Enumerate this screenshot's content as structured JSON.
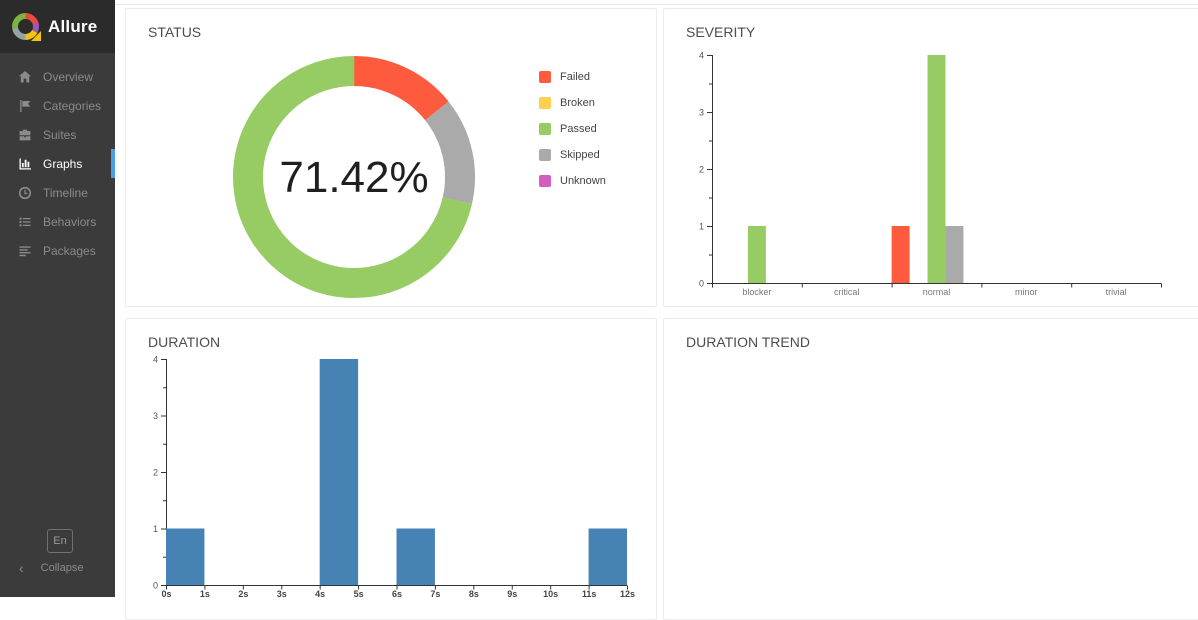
{
  "app": {
    "name": "Allure"
  },
  "sidebar": {
    "items": [
      {
        "label": "Overview",
        "icon": "home",
        "active": false
      },
      {
        "label": "Categories",
        "icon": "flag",
        "active": false
      },
      {
        "label": "Suites",
        "icon": "briefcase",
        "active": false
      },
      {
        "label": "Graphs",
        "icon": "bar-chart",
        "active": true
      },
      {
        "label": "Timeline",
        "icon": "clock",
        "active": false
      },
      {
        "label": "Behaviors",
        "icon": "list",
        "active": false
      },
      {
        "label": "Packages",
        "icon": "align-left",
        "active": false
      }
    ],
    "language_button_label": "En",
    "collapse_label": "Collapse"
  },
  "panels": {
    "status_title": "STATUS",
    "severity_title": "SEVERITY",
    "duration_title": "DURATION",
    "duration_trend_title": "DURATION TREND"
  },
  "colors": {
    "failed": "#fd5a3e",
    "broken": "#ffd050",
    "passed": "#97cc64",
    "skipped": "#aaaaaa",
    "unknown": "#d35ebe",
    "duration_bar": "#4682b4",
    "active_indicator": "#4a9fe3",
    "sidebar_bg": "#3b3b3b",
    "sidebar_header_bg": "#2b2b2b"
  },
  "chart_data": [
    {
      "id": "status",
      "type": "pie",
      "title": "STATUS",
      "center_label": "71.42%",
      "legend": [
        {
          "name": "Failed",
          "color": "#fd5a3e",
          "percent": 14.29
        },
        {
          "name": "Broken",
          "color": "#ffd050",
          "percent": 0
        },
        {
          "name": "Passed",
          "color": "#97cc64",
          "percent": 71.42
        },
        {
          "name": "Skipped",
          "color": "#aaaaaa",
          "percent": 14.29
        },
        {
          "name": "Unknown",
          "color": "#d35ebe",
          "percent": 0
        }
      ],
      "ring_order": [
        "Failed",
        "Skipped",
        "Passed"
      ],
      "ring_direction": "clockwise-from-top",
      "legend_position": "right"
    },
    {
      "id": "severity",
      "type": "bar",
      "title": "SEVERITY",
      "categories": [
        "blocker",
        "critical",
        "normal",
        "minor",
        "trivial"
      ],
      "series": [
        {
          "name": "Failed",
          "color": "#fd5a3e",
          "values": [
            0,
            0,
            1,
            0,
            0
          ]
        },
        {
          "name": "Broken",
          "color": "#ffd050",
          "values": [
            0,
            0,
            0,
            0,
            0
          ]
        },
        {
          "name": "Passed",
          "color": "#97cc64",
          "values": [
            1,
            0,
            4,
            0,
            0
          ]
        },
        {
          "name": "Skipped",
          "color": "#aaaaaa",
          "values": [
            0,
            0,
            1,
            0,
            0
          ]
        },
        {
          "name": "Unknown",
          "color": "#d35ebe",
          "values": [
            0,
            0,
            0,
            0,
            0
          ]
        }
      ],
      "ylim": [
        0,
        4
      ],
      "yticks": [
        0,
        1,
        2,
        3,
        4
      ],
      "grid": false,
      "legend_position": "none"
    },
    {
      "id": "duration",
      "type": "bar",
      "title": "DURATION",
      "bin_labels": [
        "0s",
        "1s",
        "2s",
        "3s",
        "4s",
        "5s",
        "6s",
        "7s",
        "8s",
        "9s",
        "10s",
        "11s",
        "12s"
      ],
      "values": [
        1,
        0,
        0,
        0,
        4,
        0,
        1,
        0,
        0,
        0,
        0,
        1
      ],
      "color": "#4682b4",
      "ylim": [
        0,
        4
      ],
      "yticks": [
        0,
        1,
        2,
        3,
        4
      ],
      "grid": false
    },
    {
      "id": "duration_trend",
      "type": "line",
      "title": "DURATION TREND",
      "series": []
    }
  ]
}
